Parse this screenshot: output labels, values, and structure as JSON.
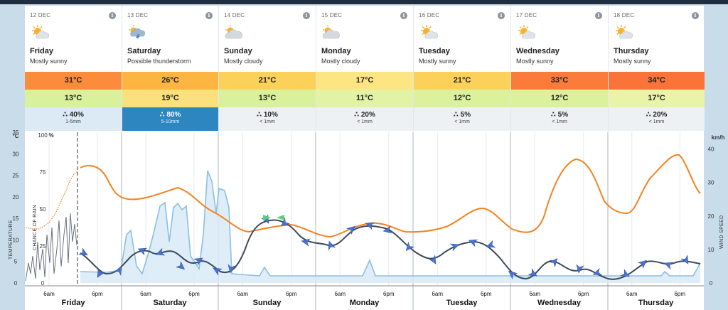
{
  "days": [
    {
      "date": "12 DEC",
      "name": "Friday",
      "desc": "Mostly sunny",
      "icon": "sun-cloud-icon",
      "high": "31°C",
      "low": "13°C",
      "rain_pct": "40%",
      "rain_mm": "1-5mm",
      "high_color": "#fb8c3c",
      "low_color": "#d9f19a",
      "rain_style": "light"
    },
    {
      "date": "13 DEC",
      "name": "Saturday",
      "desc": "Possible thunderstorm",
      "icon": "thunderstorm-icon",
      "high": "26°C",
      "low": "19°C",
      "rain_pct": "80%",
      "rain_mm": "5-10mm",
      "high_color": "#fcb541",
      "low_color": "#fbe07e",
      "rain_style": "heavy"
    },
    {
      "date": "14 DEC",
      "name": "Sunday",
      "desc": "Mostly cloudy",
      "icon": "cloud-sun-icon",
      "high": "21°C",
      "low": "13°C",
      "rain_pct": "10%",
      "rain_mm": "< 1mm",
      "high_color": "#fcd15a",
      "low_color": "#d9f19a",
      "rain_style": "none"
    },
    {
      "date": "15 DEC",
      "name": "Monday",
      "desc": "Mostly cloudy",
      "icon": "cloud-sun-icon",
      "high": "17°C",
      "low": "11°C",
      "rain_pct": "20%",
      "rain_mm": "< 1mm",
      "high_color": "#fde583",
      "low_color": "#e3f3a6",
      "rain_style": "none"
    },
    {
      "date": "16 DEC",
      "name": "Tuesday",
      "desc": "Mostly sunny",
      "icon": "sun-cloud-icon",
      "high": "21°C",
      "low": "12°C",
      "rain_pct": "5%",
      "rain_mm": "< 1mm",
      "high_color": "#fcd15a",
      "low_color": "#dcf19c",
      "rain_style": "none"
    },
    {
      "date": "17 DEC",
      "name": "Wednesday",
      "desc": "Mostly sunny",
      "icon": "sun-cloud-icon",
      "high": "33°C",
      "low": "12°C",
      "rain_pct": "5%",
      "rain_mm": "< 1mm",
      "high_color": "#fa7b3a",
      "low_color": "#dcf19c",
      "rain_style": "none"
    },
    {
      "date": "18 DEC",
      "name": "Thursday",
      "desc": "Mostly sunny",
      "icon": "sun-cloud-icon",
      "high": "34°C",
      "low": "17°C",
      "rain_pct": "20%",
      "rain_mm": "< 1mm",
      "high_color": "#fa7338",
      "low_color": "#e9f4a9",
      "rain_style": "none"
    }
  ],
  "chart": {
    "temp_unit": "°C",
    "rain_unit": "%",
    "wind_unit": "km/h",
    "temp_axis_label": "TEMPERATURE",
    "rain_axis_label": "CHANCE OF RAIN",
    "wind_axis_label": "WIND SPEED",
    "temp_ticks": [
      "35",
      "30",
      "25",
      "20",
      "15",
      "10",
      "5",
      "0"
    ],
    "rain_ticks": [
      "100",
      "75",
      "50",
      "25",
      "0"
    ],
    "wind_ticks": [
      "40",
      "30",
      "20",
      "10",
      "0"
    ],
    "hour_ticks": [
      "6am",
      "6pm"
    ],
    "colors": {
      "temperature": "#f58220",
      "wind": "#3b4a5c",
      "rain": "#8cc0df",
      "arrow": "#4a73d6"
    }
  }
}
